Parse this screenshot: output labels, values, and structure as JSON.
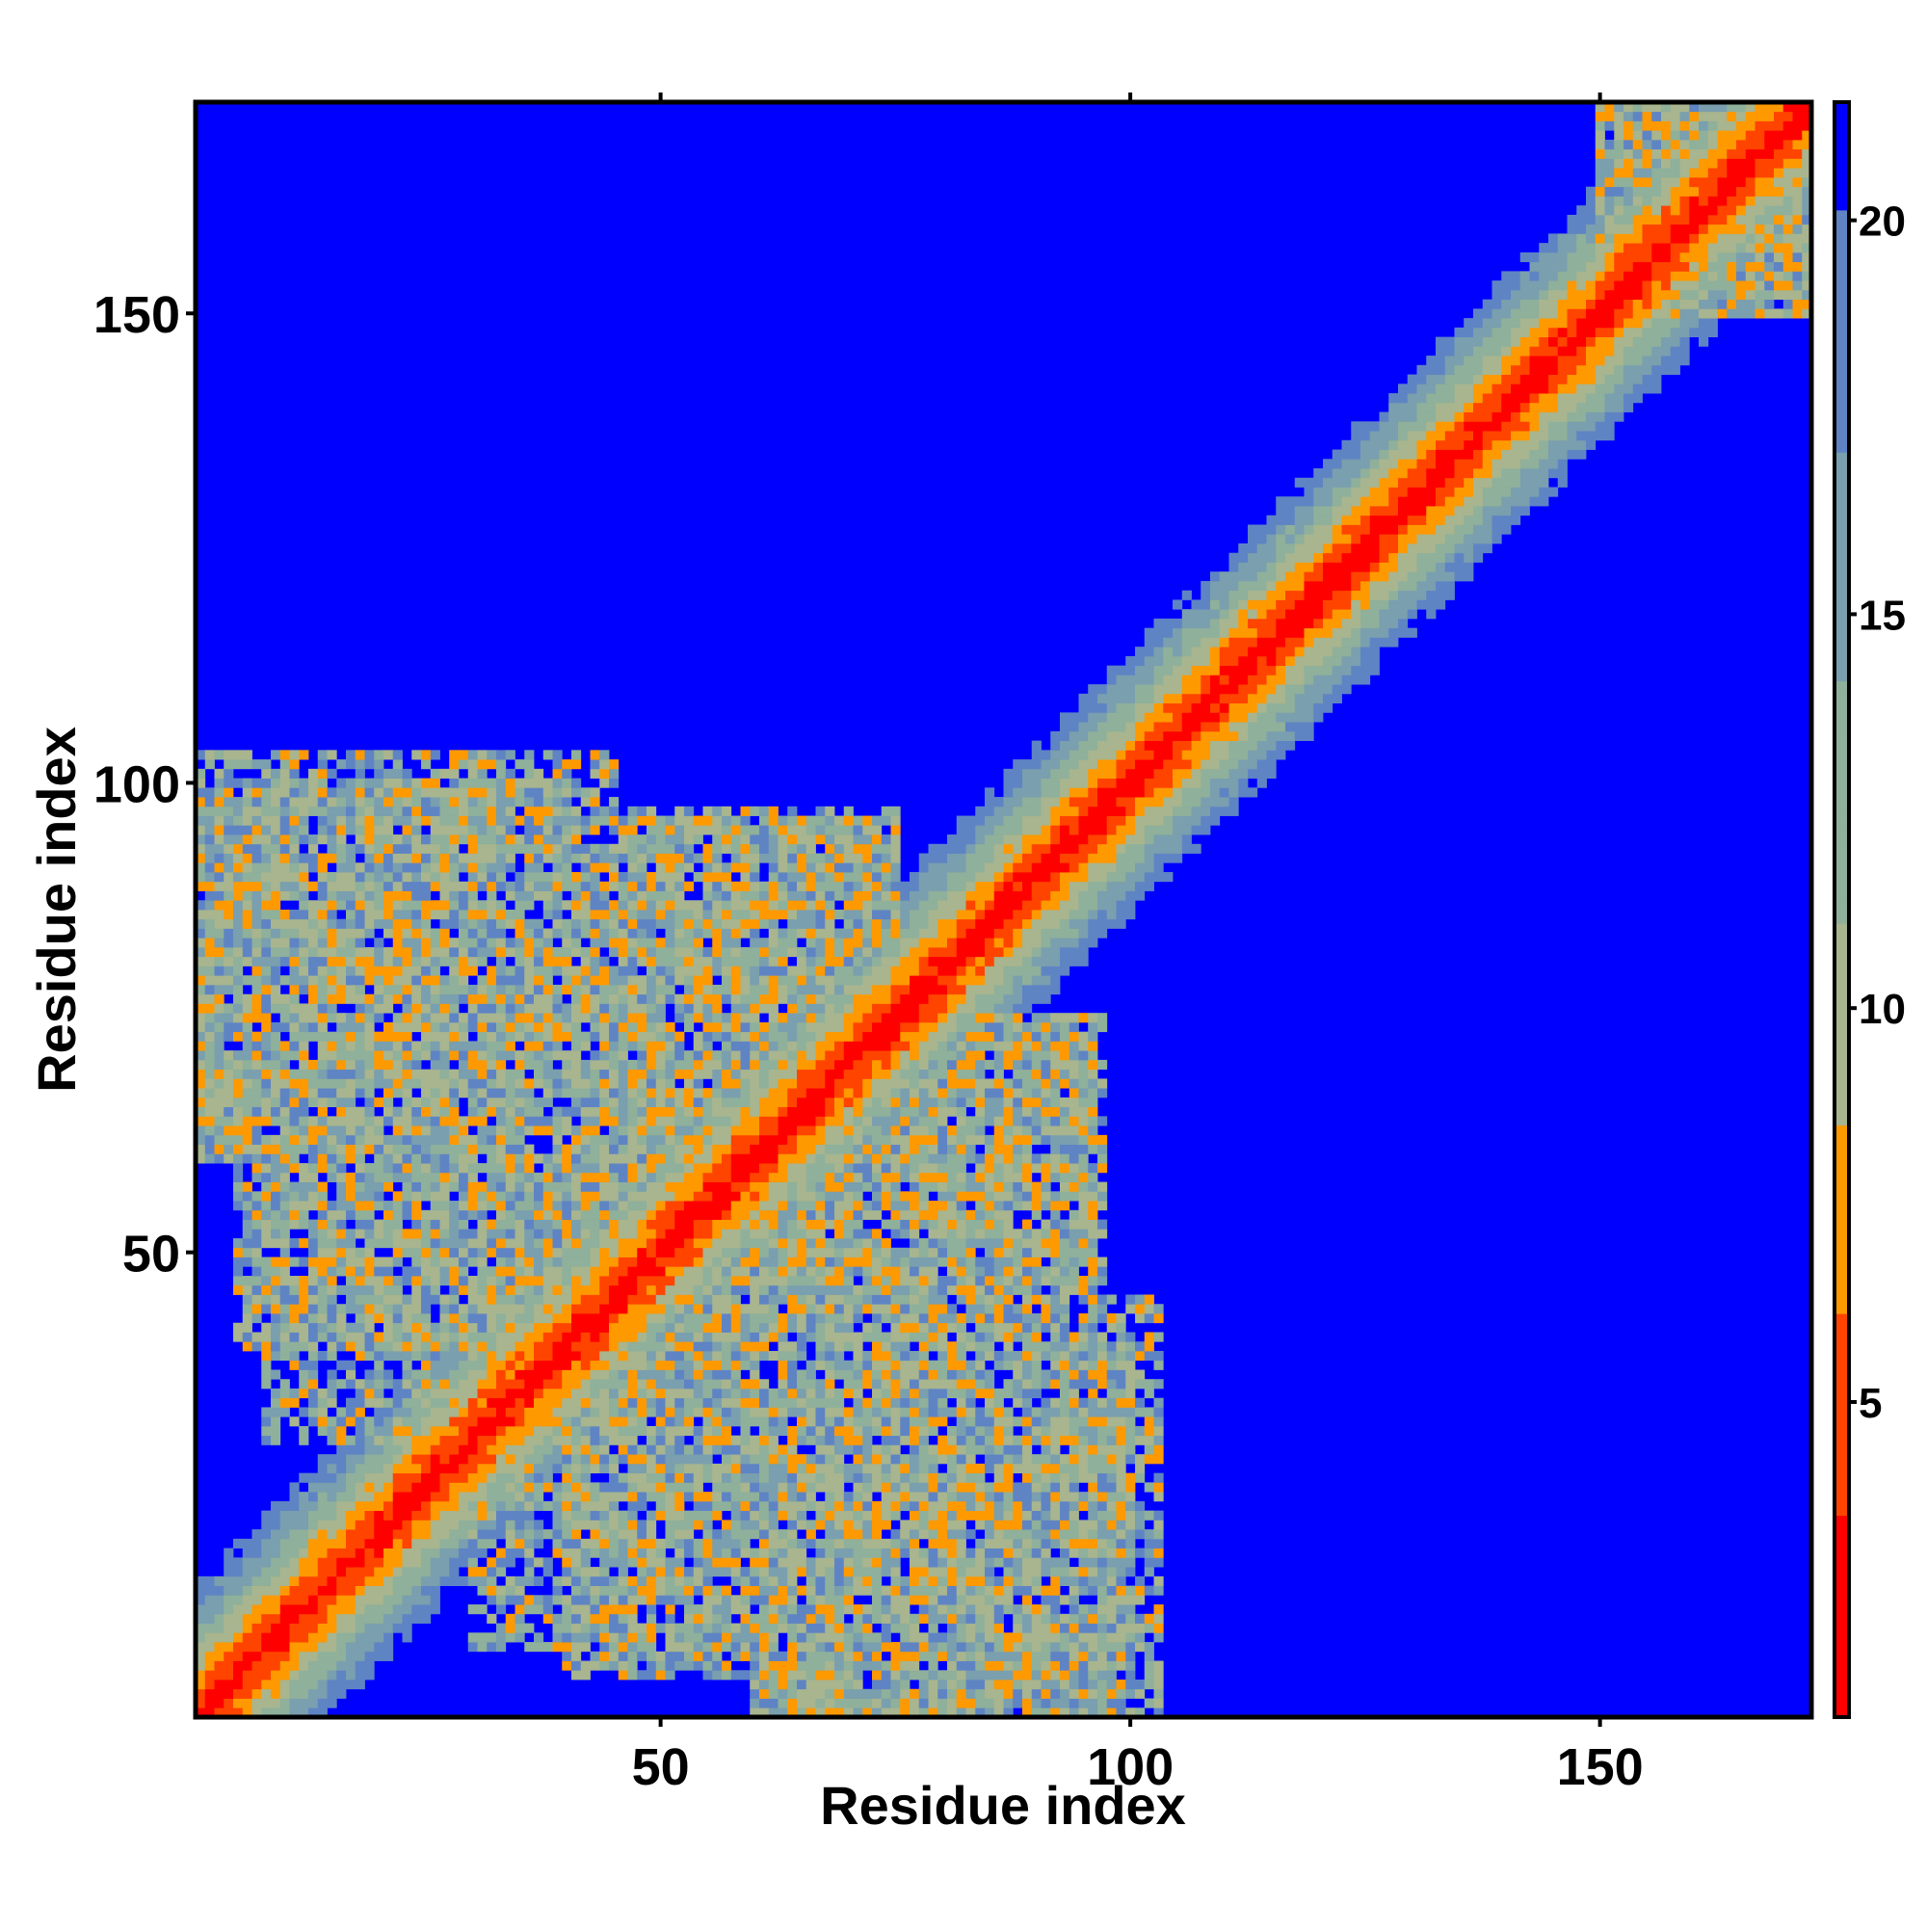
{
  "chart_data": {
    "type": "heatmap",
    "title": "",
    "xlabel": "Residue index",
    "ylabel": "Residue index",
    "xlim": [
      1,
      172
    ],
    "ylim": [
      1,
      172
    ],
    "xticks": [
      50,
      100,
      150
    ],
    "yticks": [
      50,
      100,
      150
    ],
    "colorbar": {
      "range": [
        1,
        21.5
      ],
      "ticks": [
        5,
        10,
        15,
        20
      ],
      "colors": [
        {
          "from": 1,
          "to": 3.5,
          "color": "#ff0000"
        },
        {
          "from": 3.5,
          "to": 6,
          "color": "#ff4400"
        },
        {
          "from": 6,
          "to": 8.5,
          "color": "#ff9900"
        },
        {
          "from": 8.5,
          "to": 11,
          "color": "#a8b58e"
        },
        {
          "from": 11,
          "to": 14,
          "color": "#8fb09a"
        },
        {
          "from": 14,
          "to": 17,
          "color": "#7a9fae"
        },
        {
          "from": 17,
          "to": 20,
          "color": "#5f84c4"
        },
        {
          "from": 20,
          "to": 21.5,
          "color": "#0000ff"
        }
      ]
    },
    "background_color": "#0000ff",
    "description_values": {
      "diagonal_band_halfwidth_residues": 14,
      "contact_regions": [
        {
          "x_range": [
            1,
            45
          ],
          "y_range": [
            60,
            103
          ],
          "mean_distance": 14
        },
        {
          "x_range": [
            8,
            55
          ],
          "y_range": [
            30,
            75
          ],
          "mean_distance": 14
        },
        {
          "x_range": [
            45,
            75
          ],
          "y_range": [
            65,
            97
          ],
          "mean_distance": 13
        },
        {
          "x_range": [
            40,
            90
          ],
          "y_range": [
            5,
            55
          ],
          "mean_distance": 14
        },
        {
          "x_range": [
            60,
            100
          ],
          "y_range": [
            1,
            40
          ],
          "mean_distance": 14
        },
        {
          "x_range": [
            70,
            96
          ],
          "y_range": [
            45,
            75
          ],
          "mean_distance": 14
        },
        {
          "x_range": [
            150,
            172
          ],
          "y_range": [
            150,
            172
          ],
          "mean_distance": 14
        }
      ]
    }
  }
}
